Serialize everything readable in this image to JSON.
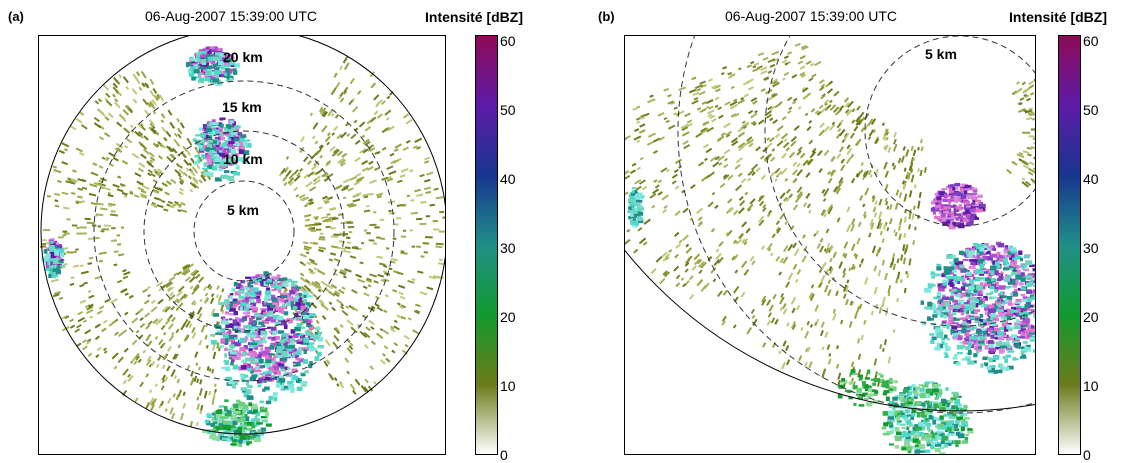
{
  "panel_a": {
    "label": "(a)",
    "title": "06-Aug-2007 15:39:00 UTC",
    "colorbar_title": "Intensité [dBZ]",
    "ring_labels": [
      "5 km",
      "10 km",
      "15 km",
      "20 km"
    ]
  },
  "panel_b": {
    "label": "(b)",
    "title": "06-Aug-2007 15:39:00 UTC",
    "colorbar_title": "Intensité [dBZ]",
    "ring_labels": [
      "5 km"
    ]
  },
  "colorbar": {
    "ticks": [
      "0",
      "10",
      "20",
      "30",
      "40",
      "50",
      "60"
    ],
    "range": [
      0,
      60
    ],
    "colors": [
      "#ffffff",
      "#6b7a1a",
      "#129a2e",
      "#1f8f88",
      "#17358f",
      "#5d1ba8",
      "#8e0a57"
    ]
  }
}
